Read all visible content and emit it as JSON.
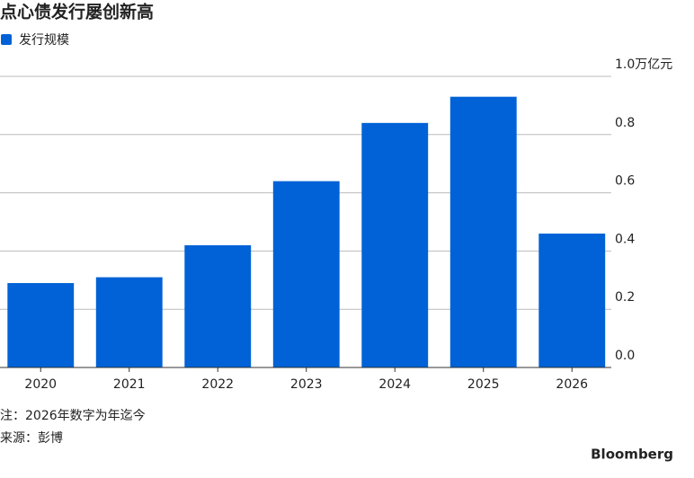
{
  "chart_data": {
    "type": "bar",
    "title": "点心债发行屡创新高",
    "categories": [
      "2020",
      "2021",
      "2022",
      "2023",
      "2024",
      "2025",
      "2026"
    ],
    "series": [
      {
        "name": "发行规模",
        "color": "#0062d6",
        "values": [
          0.29,
          0.31,
          0.42,
          0.64,
          0.84,
          0.93,
          0.46
        ]
      }
    ],
    "ylim": [
      0,
      1
    ],
    "yticks": [
      {
        "value": 0,
        "label": "0.0"
      },
      0.2,
      0.4,
      0.6,
      0.8,
      {
        "value": 1,
        "label": "1.0万亿元"
      }
    ],
    "grid": true,
    "notes": [
      "注：2026年数字为年迄今",
      "来源：彭博"
    ],
    "brand": "Bloomberg"
  }
}
